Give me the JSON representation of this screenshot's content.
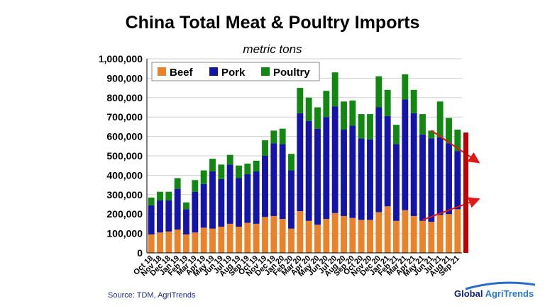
{
  "chart_data": {
    "type": "bar",
    "stacked": true,
    "title": "China Total Meat & Poultry Imports",
    "subtitle": "metric tons",
    "xlabel": "",
    "ylabel": "",
    "ylim": [
      0,
      1000000
    ],
    "yticks": [
      0,
      100000,
      200000,
      300000,
      400000,
      500000,
      600000,
      700000,
      800000,
      900000,
      1000000
    ],
    "ytick_labels": [
      "0",
      "100,000",
      "200,000",
      "300,000",
      "400,000",
      "500,000",
      "600,000",
      "700,000",
      "800,000",
      "900,000",
      "1,000,000"
    ],
    "grid": true,
    "legend_position": "top-left",
    "categories": [
      "Oct 18",
      "Nov 18",
      "Dec 18",
      "Jan 19",
      "Feb 19",
      "Mar 19",
      "Apr 19",
      "May 19",
      "Jun 19",
      "Jul 19",
      "Aug 19",
      "Sep 19",
      "Oct 19",
      "Nov 19",
      "Dec 19",
      "Jan 20",
      "Feb 20",
      "Mar 20",
      "Apr 20",
      "May 20",
      "Jun 20",
      "Jul 20",
      "Aug 20",
      "Sep 20",
      "Oct 20",
      "Nov 20",
      "Dec 20",
      "Jan 21",
      "Feb 21",
      "Mar 21",
      "Apr 21",
      "May 21",
      "Jun 21",
      "Jul 21",
      "Aug 21",
      "Sep 21"
    ],
    "tick_labels": [
      "Oct 18",
      "Nov 18",
      "Dec 18",
      "Jan 19",
      "Feb 19",
      "Mar 19",
      "Apr 19",
      "May 19",
      "Jun 19",
      "Jul 19",
      "Aug 19",
      "Sep 19",
      "Oct 19",
      "Nov 19",
      "Dec 19",
      "Jan 20",
      "Feb 20",
      "Mar 20",
      "Apr 20",
      "May 20",
      "Jun 20",
      "Jul 20",
      "Aug 20",
      "Sep 20",
      "Oct 20",
      "Nov 20",
      "Dec 20",
      "Jan 21",
      "Feb 21",
      "Mar 21",
      "Apr 21",
      "May 21",
      "Jun 21",
      "Jul 21",
      "Aug 21",
      "Sep 21"
    ],
    "series": [
      {
        "name": "Beef",
        "color": "#e8822b",
        "values": [
          95000,
          105000,
          110000,
          120000,
          95000,
          105000,
          130000,
          125000,
          135000,
          150000,
          135000,
          155000,
          150000,
          185000,
          190000,
          175000,
          125000,
          215000,
          165000,
          145000,
          175000,
          205000,
          190000,
          180000,
          170000,
          170000,
          210000,
          240000,
          165000,
          220000,
          190000,
          165000,
          160000,
          195000,
          200000,
          225000
        ]
      },
      {
        "name": "Pork",
        "color": "#1414a6",
        "values": [
          150000,
          165000,
          160000,
          210000,
          130000,
          210000,
          225000,
          295000,
          245000,
          305000,
          250000,
          250000,
          270000,
          315000,
          375000,
          385000,
          300000,
          505000,
          515000,
          495000,
          525000,
          550000,
          445000,
          475000,
          420000,
          415000,
          540000,
          465000,
          395000,
          570000,
          530000,
          445000,
          430000,
          400000,
          365000,
          300000
        ]
      },
      {
        "name": "Poultry",
        "color": "#128712",
        "values": [
          40000,
          45000,
          45000,
          55000,
          35000,
          60000,
          70000,
          65000,
          75000,
          50000,
          65000,
          55000,
          55000,
          80000,
          65000,
          80000,
          85000,
          130000,
          120000,
          110000,
          135000,
          175000,
          145000,
          130000,
          125000,
          130000,
          160000,
          135000,
          100000,
          130000,
          120000,
          105000,
          40000,
          185000,
          130000,
          110000
        ]
      }
    ],
    "annotations": [
      {
        "type": "arrow",
        "color": "#e01818",
        "from_category": "Jun 21",
        "from_value": 630000,
        "to_value": 470000,
        "direction": "down-right"
      },
      {
        "type": "arrow",
        "color": "#e01818",
        "from_category": "May 21",
        "from_value": 170000,
        "to_value": 275000,
        "direction": "up-right"
      },
      {
        "type": "bar",
        "color": "#c00000",
        "value_low": 0,
        "value_high": 620000,
        "position": "right-of-plot"
      }
    ]
  },
  "footer": {
    "source": "Source:  TDM, AgriTrends",
    "logo_word1": "Global",
    "logo_word2": " AgriTrends"
  }
}
